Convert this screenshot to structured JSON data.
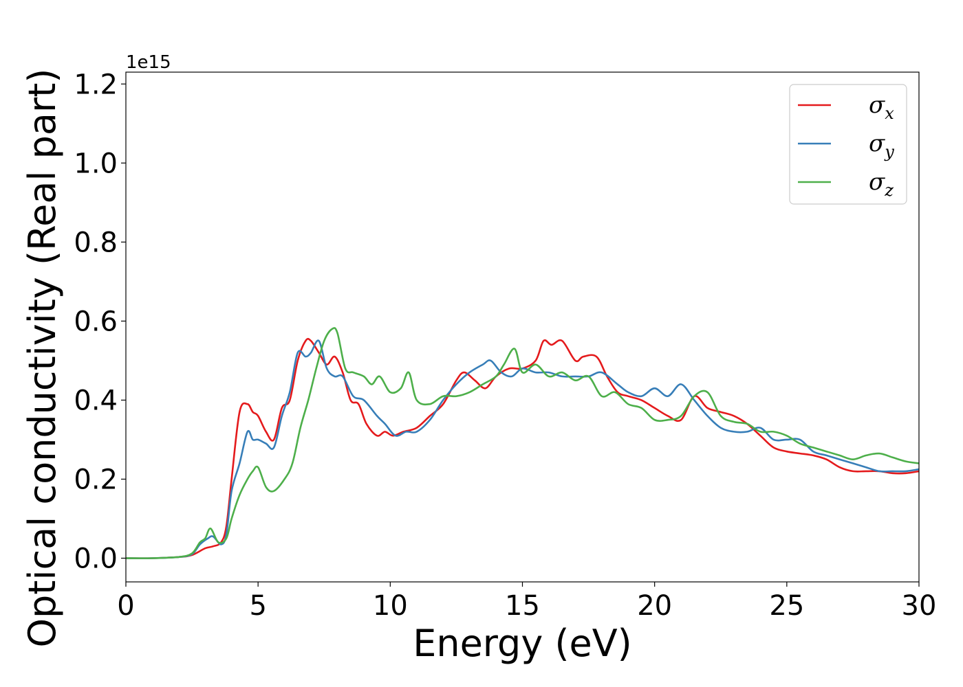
{
  "chart_data": {
    "type": "line",
    "xlabel": "Energy (eV)",
    "ylabel": "Optical conductivity (Real part)",
    "offset_text": "1e15",
    "xlim": [
      0,
      30
    ],
    "ylim": [
      -0.06,
      1.23
    ],
    "y_scale_factor": 1000000000000000.0,
    "x_ticks": [
      0,
      5,
      10,
      15,
      20,
      25,
      30
    ],
    "x_tick_labels": [
      "0",
      "5",
      "10",
      "15",
      "20",
      "25",
      "30"
    ],
    "y_ticks": [
      0.0,
      0.2,
      0.4,
      0.6,
      0.8,
      1.0,
      1.2
    ],
    "y_tick_labels": [
      "0.0",
      "0.2",
      "0.4",
      "0.6",
      "0.8",
      "1.0",
      "1.2"
    ],
    "grid": false,
    "legend_position": "top-right",
    "series": [
      {
        "name": "σx",
        "legend_main": "σ",
        "legend_sub": "x",
        "color": "#e41a1c",
        "x": [
          0,
          1,
          2,
          2.5,
          3.0,
          3.3,
          3.6,
          3.8,
          4.0,
          4.3,
          4.6,
          4.8,
          5.0,
          5.3,
          5.6,
          5.9,
          6.2,
          6.5,
          6.8,
          7.0,
          7.3,
          7.6,
          7.9,
          8.2,
          8.5,
          8.8,
          9.1,
          9.5,
          9.8,
          10.1,
          10.5,
          11.0,
          11.5,
          12.0,
          12.5,
          12.8,
          13.2,
          13.6,
          14.0,
          14.5,
          15.0,
          15.5,
          15.8,
          16.1,
          16.5,
          17.0,
          17.3,
          17.8,
          18.2,
          18.6,
          19.0,
          19.5,
          20.0,
          20.5,
          21.0,
          21.5,
          22.0,
          22.5,
          23.0,
          23.5,
          24.0,
          24.5,
          25.0,
          25.5,
          26.0,
          26.5,
          27.0,
          27.5,
          28.0,
          28.5,
          29.0,
          29.5,
          30.0
        ],
        "values": [
          0,
          0.0,
          0.003,
          0.008,
          0.025,
          0.03,
          0.04,
          0.08,
          0.2,
          0.37,
          0.39,
          0.37,
          0.36,
          0.32,
          0.3,
          0.38,
          0.4,
          0.5,
          0.55,
          0.55,
          0.52,
          0.49,
          0.51,
          0.47,
          0.4,
          0.39,
          0.34,
          0.31,
          0.32,
          0.31,
          0.32,
          0.33,
          0.36,
          0.39,
          0.45,
          0.47,
          0.45,
          0.43,
          0.46,
          0.48,
          0.48,
          0.5,
          0.55,
          0.54,
          0.55,
          0.5,
          0.51,
          0.51,
          0.46,
          0.42,
          0.41,
          0.4,
          0.38,
          0.36,
          0.35,
          0.41,
          0.38,
          0.37,
          0.36,
          0.34,
          0.31,
          0.28,
          0.27,
          0.265,
          0.26,
          0.25,
          0.23,
          0.22,
          0.22,
          0.22,
          0.215,
          0.215,
          0.22
        ]
      },
      {
        "name": "σy",
        "legend_main": "σ",
        "legend_sub": "y",
        "color": "#377eb8",
        "x": [
          0,
          1,
          2,
          2.5,
          2.8,
          3.1,
          3.3,
          3.6,
          3.8,
          4.0,
          4.3,
          4.6,
          4.8,
          5.0,
          5.3,
          5.6,
          5.9,
          6.2,
          6.5,
          6.8,
          7.0,
          7.3,
          7.6,
          7.9,
          8.2,
          8.6,
          9.0,
          9.5,
          9.8,
          10.2,
          10.6,
          11.0,
          11.5,
          12.0,
          12.5,
          13.0,
          13.5,
          13.8,
          14.2,
          14.6,
          15.0,
          15.5,
          16.0,
          16.5,
          17.0,
          17.5,
          18.0,
          18.6,
          19.0,
          19.5,
          20.0,
          20.5,
          21.0,
          21.5,
          22.0,
          22.5,
          23.0,
          23.5,
          24.0,
          24.5,
          25.0,
          25.5,
          26.0,
          26.5,
          27.0,
          27.5,
          28.0,
          28.5,
          29.0,
          29.5,
          30.0
        ],
        "values": [
          0,
          0.0,
          0.003,
          0.01,
          0.035,
          0.05,
          0.055,
          0.035,
          0.06,
          0.17,
          0.24,
          0.32,
          0.3,
          0.3,
          0.29,
          0.28,
          0.36,
          0.42,
          0.52,
          0.51,
          0.52,
          0.55,
          0.48,
          0.46,
          0.46,
          0.41,
          0.4,
          0.36,
          0.34,
          0.31,
          0.32,
          0.32,
          0.35,
          0.4,
          0.44,
          0.47,
          0.49,
          0.5,
          0.47,
          0.46,
          0.48,
          0.47,
          0.47,
          0.46,
          0.46,
          0.46,
          0.47,
          0.44,
          0.42,
          0.41,
          0.43,
          0.41,
          0.44,
          0.4,
          0.36,
          0.33,
          0.32,
          0.32,
          0.33,
          0.3,
          0.3,
          0.3,
          0.27,
          0.26,
          0.25,
          0.24,
          0.23,
          0.22,
          0.22,
          0.22,
          0.225
        ]
      },
      {
        "name": "σz",
        "legend_main": "σ",
        "legend_sub": "z",
        "color": "#4daf4a",
        "x": [
          0,
          1,
          2,
          2.5,
          2.8,
          3.0,
          3.2,
          3.5,
          3.8,
          4.0,
          4.3,
          4.6,
          4.8,
          5.0,
          5.3,
          5.6,
          6.0,
          6.3,
          6.6,
          6.9,
          7.2,
          7.5,
          7.8,
          8.0,
          8.3,
          8.6,
          9.0,
          9.3,
          9.6,
          10.0,
          10.4,
          10.7,
          11.0,
          11.5,
          12.0,
          12.5,
          13.0,
          13.5,
          14.0,
          14.3,
          14.7,
          15.0,
          15.5,
          16.0,
          16.5,
          17.0,
          17.5,
          18.0,
          18.5,
          19.0,
          19.5,
          20.0,
          20.5,
          21.0,
          21.5,
          22.0,
          22.5,
          23.0,
          23.5,
          24.0,
          24.5,
          25.0,
          25.5,
          26.0,
          26.5,
          27.0,
          27.5,
          28.0,
          28.5,
          29.0,
          29.5,
          30.0
        ],
        "values": [
          0,
          0.0,
          0.003,
          0.012,
          0.04,
          0.05,
          0.075,
          0.04,
          0.05,
          0.1,
          0.16,
          0.2,
          0.22,
          0.23,
          0.18,
          0.17,
          0.2,
          0.24,
          0.33,
          0.4,
          0.48,
          0.55,
          0.58,
          0.57,
          0.48,
          0.47,
          0.46,
          0.44,
          0.46,
          0.42,
          0.43,
          0.47,
          0.4,
          0.39,
          0.41,
          0.41,
          0.42,
          0.44,
          0.46,
          0.49,
          0.53,
          0.47,
          0.49,
          0.46,
          0.47,
          0.45,
          0.46,
          0.41,
          0.42,
          0.39,
          0.38,
          0.35,
          0.35,
          0.36,
          0.41,
          0.42,
          0.36,
          0.345,
          0.34,
          0.32,
          0.32,
          0.31,
          0.29,
          0.28,
          0.27,
          0.26,
          0.25,
          0.26,
          0.265,
          0.255,
          0.245,
          0.24
        ]
      }
    ]
  }
}
